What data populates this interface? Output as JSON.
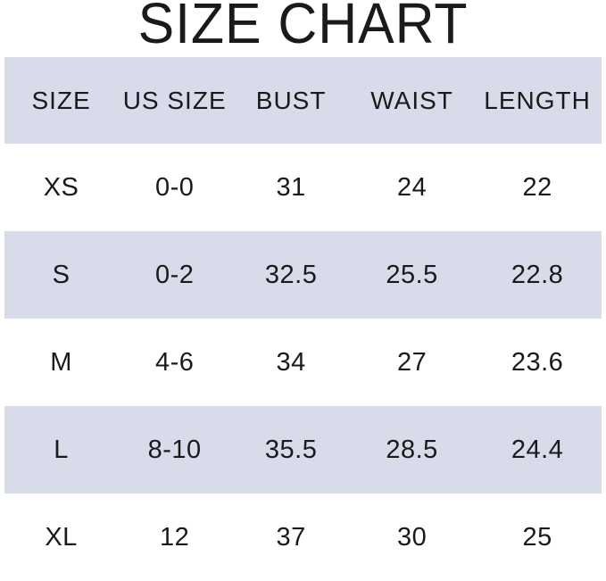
{
  "title": "SIZE CHART",
  "colors": {
    "band": "#d8dbe9",
    "row_alt": "#ffffff",
    "text": "#1a1a1a"
  },
  "chart_data": {
    "type": "table",
    "title": "SIZE CHART",
    "columns": [
      "SIZE",
      "US SIZE",
      "BUST",
      "WAIST",
      "LENGTH"
    ],
    "rows": [
      [
        "XS",
        "0-0",
        "31",
        "24",
        "22"
      ],
      [
        "S",
        "0-2",
        "32.5",
        "25.5",
        "22.8"
      ],
      [
        "M",
        "4-6",
        "34",
        "27",
        "23.6"
      ],
      [
        "L",
        "8-10",
        "35.5",
        "28.5",
        "24.4"
      ],
      [
        "XL",
        "12",
        "37",
        "30",
        "25"
      ]
    ],
    "layout_hints": {
      "header_background": "#d8dbe9",
      "alternating_row_background": [
        "#ffffff",
        "#d8dbe9"
      ],
      "grid": false,
      "last_row_clipped": true
    }
  }
}
